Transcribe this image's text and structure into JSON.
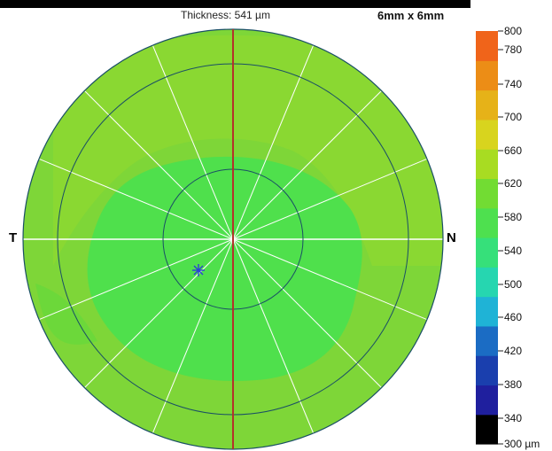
{
  "header": {
    "thickness": "Thickness: 541 µm",
    "scan_size": "6mm x 6mm"
  },
  "map": {
    "temporal_label": "T",
    "nasal_label": "N",
    "background_fill": "#7ed638",
    "zones": [
      {
        "color": "#8ad832"
      },
      {
        "color": "#4fe04c"
      },
      {
        "color": "#6cd83a"
      }
    ],
    "line_color": "#ffffff",
    "ring_color": "#1a4f66",
    "meridian_color": "#b3332a",
    "marker_color": "#2b3fd6"
  },
  "color_scale": {
    "colors": [
      "#000000",
      "#1f1f9e",
      "#1a3fae",
      "#1b6cc4",
      "#1fb3d6",
      "#26d6b0",
      "#36e07a",
      "#4ee04f",
      "#72dc33",
      "#a8dc22",
      "#d8d41e",
      "#e6b218",
      "#ec8d16",
      "#f0641a"
    ],
    "ticks": [
      {
        "label": "800"
      },
      {
        "label": "780"
      },
      {
        "label": "740"
      },
      {
        "label": "700"
      },
      {
        "label": "660"
      },
      {
        "label": "620"
      },
      {
        "label": "580"
      },
      {
        "label": "540"
      },
      {
        "label": "500"
      },
      {
        "label": "460"
      },
      {
        "label": "420"
      },
      {
        "label": "380"
      },
      {
        "label": "340"
      },
      {
        "label": "300 µm"
      }
    ]
  }
}
